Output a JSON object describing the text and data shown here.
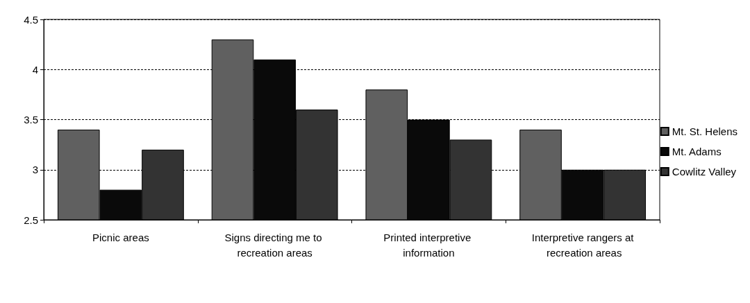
{
  "chart_data": {
    "type": "bar",
    "categories": [
      "Picnic areas",
      "Signs directing me to recreation areas",
      "Printed interpretive information",
      "Interpretive rangers at recreation areas"
    ],
    "series": [
      {
        "name": "Mt. St. Helens",
        "color": "#606060",
        "values": [
          3.4,
          4.3,
          3.8,
          3.4
        ]
      },
      {
        "name": "Mt. Adams",
        "color": "#0a0a0a",
        "values": [
          2.8,
          4.1,
          3.5,
          3.0
        ]
      },
      {
        "name": "Cowlitz Valley",
        "color": "#333333",
        "values": [
          3.2,
          3.6,
          3.3,
          3.0
        ]
      }
    ],
    "ylim": [
      2.5,
      4.5
    ],
    "yticks": [
      2.5,
      3,
      3.5,
      4,
      4.5
    ],
    "grid": "y",
    "legend": "right"
  }
}
